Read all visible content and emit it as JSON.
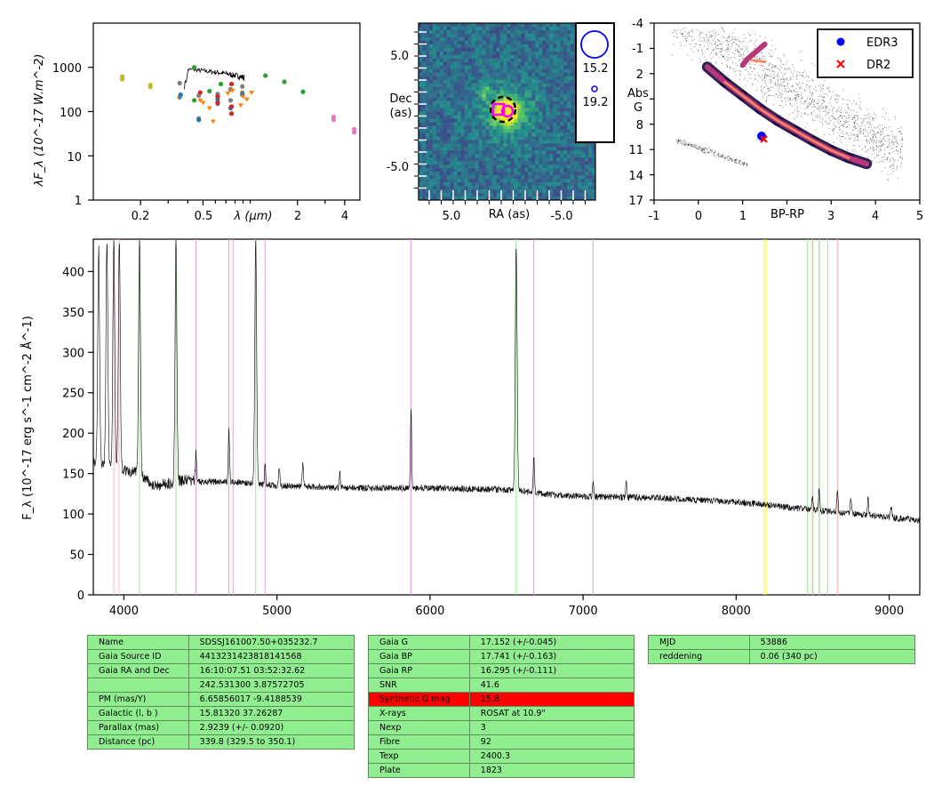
{
  "sed_panel": {
    "ylabel": "λF_λ (10^-17 W.m^-2)",
    "xlabel": "λ (μm)",
    "y_ticks": [
      "1",
      "10",
      "100",
      "1000"
    ],
    "x_ticks": [
      "0.2",
      "0.5",
      "2",
      "4"
    ]
  },
  "image_panel": {
    "xlabel": "RA (as)",
    "ylabel_line1": "Dec",
    "ylabel_line2": "(as)",
    "x_ticks": [
      "5.0",
      "-5.0"
    ],
    "y_ticks": [
      "5.0",
      "-5.0"
    ],
    "legend": [
      "15.2",
      "19.2"
    ]
  },
  "hr_panel": {
    "xlabel": "BP-RP",
    "ylabel_line1": "Abs",
    "ylabel_line2": "G",
    "x_ticks": [
      "-1",
      "0",
      "1",
      "2",
      "3",
      "4",
      "5"
    ],
    "y_ticks": [
      "-4",
      "-1",
      "2",
      "5",
      "8",
      "11",
      "14",
      "17"
    ],
    "legend": [
      {
        "label": "EDR3",
        "color": "#0000ff",
        "marker": "circle"
      },
      {
        "label": "DR2",
        "color": "#ff0000",
        "marker": "x"
      }
    ]
  },
  "spectrum_panel": {
    "ylabel": "F_λ (10^-17 erg s^-1 cm^-2 Å^-1)",
    "x_ticks": [
      "4000",
      "5000",
      "6000",
      "7000",
      "8000",
      "9000"
    ],
    "y_ticks": [
      "0",
      "50",
      "100",
      "150",
      "200",
      "250",
      "300",
      "350",
      "400"
    ]
  },
  "table1": [
    [
      "Name",
      "SDSSJ161007.50+035232.7"
    ],
    [
      "Gaia Source ID",
      "4413231423818141568"
    ],
    [
      "Gaia RA and Dec",
      "16:10:07.51    03:52:32.62"
    ],
    [
      "",
      "242.531300    3.87572705"
    ],
    [
      "PM (mas/Y)",
      "6.65856017    -9.4188539"
    ],
    [
      "Galactic (l, b )",
      "15.81320    37.26287"
    ],
    [
      "Parallax (mas)",
      "2.9239 (+/- 0.0920)"
    ],
    [
      "Distance (pc)",
      "339.8 (329.5 to 350.1)"
    ]
  ],
  "table2": [
    [
      "Gaia G",
      "17.152 (+/-0.045)"
    ],
    [
      "Gaia BP",
      "17.741 (+/-0.163)"
    ],
    [
      "Gaia RP",
      "16.295 (+/-0.111)"
    ],
    [
      "SNR",
      "41.6"
    ],
    [
      "Synthetic G mag",
      "15.8"
    ],
    [
      "X-rays",
      "ROSAT at 10.9\""
    ],
    [
      "Nexp",
      "3"
    ],
    [
      "Fibre",
      "92"
    ],
    [
      "Texp",
      "2400.3"
    ],
    [
      "Plate",
      "1823"
    ]
  ],
  "table3": [
    [
      "MJD",
      "53886"
    ],
    [
      "reddening",
      "0.06 (340 pc)"
    ]
  ],
  "chart_data": [
    {
      "type": "scatter",
      "x_unit": "μm",
      "y_unit": "10^-17 W.m^-2",
      "xscale": "log",
      "yscale": "log",
      "xlim": [
        0.1,
        5
      ],
      "ylim": [
        1,
        10000
      ],
      "series": [
        {
          "color": "#bcbd22",
          "x": [
            0.153,
            0.153,
            0.231,
            0.231
          ],
          "y": [
            620,
            540,
            400,
            360
          ]
        },
        {
          "color": "#7f7f7f",
          "x": [
            0.355,
            0.355,
            0.47,
            0.47,
            0.62,
            0.62,
            0.75,
            0.75,
            0.89,
            0.89
          ],
          "y": [
            440,
            210,
            230,
            70,
            250,
            150,
            320,
            180,
            370,
            270
          ]
        },
        {
          "color": "#1f77b4",
          "x": [
            0.36,
            0.47,
            0.62,
            0.75,
            0.89
          ],
          "y": [
            240,
            65,
            190,
            120,
            240
          ]
        },
        {
          "color": "#2ca02c",
          "x": [
            0.44,
            0.55,
            0.65,
            1.25,
            1.65,
            2.17,
            0.44
          ],
          "y": [
            1000,
            290,
            420,
            650,
            470,
            280,
            180
          ]
        },
        {
          "color": "#d62728",
          "x": [
            0.48,
            0.62,
            0.62,
            0.76,
            0.76,
            0.76
          ],
          "y": [
            270,
            220,
            160,
            420,
            130,
            90
          ]
        },
        {
          "color": "#ff7f0e",
          "x": [
            0.48,
            0.5,
            0.55,
            0.58,
            0.77,
            0.87,
            0.9,
            0.95,
            1.02,
            0.72
          ],
          "y": [
            180,
            160,
            120,
            60,
            300,
            140,
            220,
            190,
            270,
            260
          ]
        },
        {
          "color": "#e377c2",
          "x": [
            3.4,
            3.4,
            4.6,
            4.6
          ],
          "y": [
            75,
            65,
            40,
            34
          ]
        }
      ],
      "model_spectrum": {
        "x_range_um": [
          0.38,
          0.92
        ],
        "y_range": [
          320,
          1000
        ]
      }
    },
    {
      "type": "heatmap",
      "x_unit": "arcsec",
      "y_unit": "arcsec",
      "xlim": [
        10,
        -8
      ],
      "ylim": [
        -8,
        10
      ],
      "markers": [
        {
          "shape": "circle",
          "color": "#0000ff",
          "legend": "15.2"
        },
        {
          "shape": "circle",
          "color": "#0000ff",
          "legend": "19.2"
        },
        {
          "shape": "dashed-circle",
          "color": "#000000"
        },
        {
          "shape": "square",
          "color": "#ff00ff"
        }
      ]
    },
    {
      "type": "scatter",
      "xlim": [
        -1,
        5
      ],
      "ylim": [
        17,
        -4
      ],
      "series": [
        {
          "name": "EDR3",
          "x": [
            1.45
          ],
          "y": [
            9.8
          ]
        },
        {
          "name": "DR2",
          "x": [
            1.5
          ],
          "y": [
            10.0
          ]
        }
      ]
    },
    {
      "type": "line",
      "x_unit": "Å",
      "y_unit": "10^-17 erg s^-1 cm^-2 Å^-1",
      "xlim": [
        3800,
        9200
      ],
      "ylim": [
        0,
        440
      ],
      "continuum": [
        [
          3800,
          165
        ],
        [
          3900,
          160
        ],
        [
          4000,
          155
        ],
        [
          4100,
          150
        ],
        [
          4200,
          135
        ],
        [
          4300,
          138
        ],
        [
          4400,
          142
        ],
        [
          4500,
          140
        ],
        [
          4700,
          140
        ],
        [
          5000,
          135
        ],
        [
          5500,
          132
        ],
        [
          6000,
          132
        ],
        [
          6500,
          130
        ],
        [
          6900,
          122
        ],
        [
          7500,
          120
        ],
        [
          8000,
          115
        ],
        [
          8500,
          105
        ],
        [
          9000,
          96
        ],
        [
          9200,
          92
        ]
      ],
      "emission_lines": [
        {
          "x": 3835,
          "peak": 430
        },
        {
          "x": 3889,
          "peak": 440
        },
        {
          "x": 3934,
          "peak": 440
        },
        {
          "x": 3970,
          "peak": 440
        },
        {
          "x": 4102,
          "peak": 440
        },
        {
          "x": 4340,
          "peak": 440
        },
        {
          "x": 4471,
          "peak": 175
        },
        {
          "x": 4686,
          "peak": 205
        },
        {
          "x": 4861,
          "peak": 440
        },
        {
          "x": 4922,
          "peak": 165
        },
        {
          "x": 5015,
          "peak": 160
        },
        {
          "x": 5169,
          "peak": 165
        },
        {
          "x": 5411,
          "peak": 150
        },
        {
          "x": 5876,
          "peak": 230
        },
        {
          "x": 6563,
          "peak": 432
        },
        {
          "x": 6678,
          "peak": 172
        },
        {
          "x": 7065,
          "peak": 142
        },
        {
          "x": 7282,
          "peak": 138
        },
        {
          "x": 8498,
          "peak": 122
        },
        {
          "x": 8542,
          "peak": 132
        },
        {
          "x": 8662,
          "peak": 130
        },
        {
          "x": 8750,
          "peak": 118
        },
        {
          "x": 8862,
          "peak": 118
        },
        {
          "x": 9014,
          "peak": 110
        }
      ],
      "marker_lines": [
        {
          "x": 3934,
          "color": "#ffb6c1"
        },
        {
          "x": 3968,
          "color": "#ffb6c1"
        },
        {
          "x": 4102,
          "color": "#90ee90"
        },
        {
          "x": 4340,
          "color": "#90ee90"
        },
        {
          "x": 4861,
          "color": "#90ee90"
        },
        {
          "x": 6563,
          "color": "#90ee90"
        },
        {
          "x": 4471,
          "color": "#dda0dd"
        },
        {
          "x": 4686,
          "color": "#dda0dd"
        },
        {
          "x": 4713,
          "color": "#dda0dd"
        },
        {
          "x": 4922,
          "color": "#dda0dd"
        },
        {
          "x": 5876,
          "color": "#dda0dd"
        },
        {
          "x": 6678,
          "color": "#dda0dd"
        },
        {
          "x": 7065,
          "color": "#dda0dd"
        },
        {
          "x": 8183,
          "color": "#ffff00"
        },
        {
          "x": 8195,
          "color": "#ffff00"
        },
        {
          "x": 8467,
          "color": "#90ee90"
        },
        {
          "x": 8502,
          "color": "#90ee90"
        },
        {
          "x": 8545,
          "color": "#90ee90"
        },
        {
          "x": 8598,
          "color": "#90ee90"
        },
        {
          "x": 8665,
          "color": "#90ee90"
        },
        {
          "x": 8498,
          "color": "#ffb6c1"
        },
        {
          "x": 8542,
          "color": "#ffb6c1"
        },
        {
          "x": 8662,
          "color": "#ffb6c1"
        }
      ]
    }
  ]
}
